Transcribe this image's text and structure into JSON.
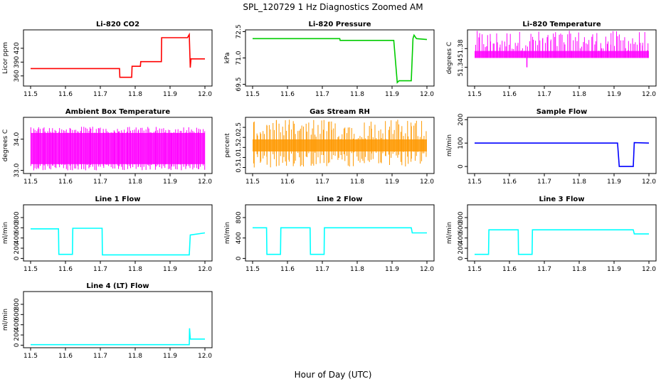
{
  "figure": {
    "title": "SPL_120729  1 Hz Diagnostics Zoomed AM",
    "xlabel": "Hour of Day (UTC)"
  },
  "chart_data": [
    {
      "type": "line",
      "title": "Li-820 CO2",
      "ylabel": "Licor ppm",
      "color": "#ff0000",
      "xlim": [
        11.5,
        12.0
      ],
      "ylim": [
        338,
        460
      ],
      "x_ticks": [
        "11.5",
        "11.6",
        "11.7",
        "11.8",
        "11.9",
        "12.0"
      ],
      "y_ticks": [
        {
          "value": 360,
          "label": "360"
        },
        {
          "value": 390,
          "label": "390"
        },
        {
          "value": 420,
          "label": "420"
        }
      ],
      "series": [
        {
          "x": [
            11.5,
            11.755,
            11.756,
            11.79,
            11.791,
            11.815,
            11.816,
            11.875,
            11.876,
            11.95,
            11.955,
            11.958,
            11.96,
            11.97,
            12.0
          ],
          "y": [
            376,
            376,
            357,
            357,
            381,
            381,
            391,
            391,
            443,
            443,
            450,
            378,
            397,
            397,
            397
          ]
        }
      ]
    },
    {
      "type": "line",
      "title": "Li-820 Pressure",
      "ylabel": "kPa",
      "color": "#00cc00",
      "xlim": [
        11.5,
        12.0
      ],
      "ylim": [
        69.4,
        72.6
      ],
      "x_ticks": [
        "11.5",
        "11.6",
        "11.7",
        "11.8",
        "11.9",
        "12.0"
      ],
      "y_ticks": [
        {
          "value": 69.5,
          "label": "69.5"
        },
        {
          "value": 71.0,
          "label": "71.0"
        },
        {
          "value": 72.5,
          "label": "72.5"
        }
      ],
      "series": [
        {
          "x": [
            11.5,
            11.75,
            11.751,
            11.905,
            11.915,
            11.92,
            11.955,
            11.96,
            11.963,
            11.97,
            12.0
          ],
          "y": [
            72.1,
            72.1,
            72.0,
            72.0,
            69.6,
            69.7,
            69.7,
            72.1,
            72.3,
            72.1,
            72.05
          ]
        }
      ]
    },
    {
      "type": "band",
      "title": "Li-820 Temperature",
      "ylabel": "degrees C",
      "color": "#ff00ff",
      "xlim": [
        11.5,
        12.0
      ],
      "ylim": [
        51.3,
        51.42
      ],
      "x_ticks": [
        "11.5",
        "11.6",
        "11.7",
        "11.8",
        "11.9",
        "12.0"
      ],
      "y_ticks": [
        {
          "value": 51.34,
          "label": "51.34"
        },
        {
          "value": 51.38,
          "label": "51.38"
        }
      ],
      "band": {
        "low": 51.36,
        "high": 51.375,
        "spike_max": 51.418,
        "outlier": {
          "x": 11.65,
          "y": 51.34
        }
      }
    },
    {
      "type": "band",
      "title": "Ambient Box Temperature",
      "ylabel": "degrees C",
      "color": "#ff00ff",
      "xlim": [
        11.5,
        12.0
      ],
      "ylim": [
        32.9,
        34.7
      ],
      "x_ticks": [
        "11.5",
        "11.6",
        "11.7",
        "11.8",
        "11.9",
        "12.0"
      ],
      "y_ticks": [
        {
          "value": 33.0,
          "label": "33.0"
        },
        {
          "value": 34.0,
          "label": "34.0"
        }
      ],
      "band": {
        "low": 33.2,
        "high": 34.2,
        "spike_max": 34.4,
        "spike_min": 32.95
      }
    },
    {
      "type": "band",
      "title": "Gas Stream RH",
      "ylabel": "percent",
      "color": "#ff9900",
      "xlim": [
        11.5,
        12.0
      ],
      "ylim": [
        0.2,
        3.0
      ],
      "x_ticks": [
        "11.5",
        "11.6",
        "11.7",
        "11.8",
        "11.9",
        "12.0"
      ],
      "y_ticks": [
        {
          "value": 0.5,
          "label": "0.5"
        },
        {
          "value": 1.0,
          "label": "1.0"
        },
        {
          "value": 1.5,
          "label": "1.5"
        },
        {
          "value": 2.0,
          "label": "2.0"
        },
        {
          "value": 2.5,
          "label": "2.5"
        }
      ],
      "band": {
        "low": 1.3,
        "high": 1.9,
        "spike_max": 2.9,
        "spike_min": 0.3
      }
    },
    {
      "type": "line",
      "title": "Sample Flow",
      "ylabel": "ml/min",
      "color": "#0000ff",
      "xlim": [
        11.5,
        12.0
      ],
      "ylim": [
        -30,
        210
      ],
      "x_ticks": [
        "11.5",
        "11.6",
        "11.7",
        "11.8",
        "11.9",
        "12.0"
      ],
      "y_ticks": [
        {
          "value": 0,
          "label": "0"
        },
        {
          "value": 100,
          "label": "100"
        },
        {
          "value": 200,
          "label": "200"
        }
      ],
      "series": [
        {
          "x": [
            11.5,
            11.91,
            11.915,
            11.955,
            11.958,
            12.0
          ],
          "y": [
            100,
            100,
            0,
            0,
            102,
            100
          ]
        }
      ]
    },
    {
      "type": "line",
      "title": "Line 1 Flow",
      "ylabel": "ml/min",
      "color": "#00ffff",
      "xlim": [
        11.5,
        12.0
      ],
      "ylim": [
        -50,
        1050
      ],
      "x_ticks": [
        "11.5",
        "11.6",
        "11.7",
        "11.8",
        "11.9",
        "12.0"
      ],
      "y_ticks": [
        {
          "value": 0,
          "label": "0"
        },
        {
          "value": 200,
          "label": "200"
        },
        {
          "value": 400,
          "label": "400"
        },
        {
          "value": 600,
          "label": "600"
        },
        {
          "value": 800,
          "label": "800"
        }
      ],
      "series": [
        {
          "x": [
            11.5,
            11.58,
            11.581,
            11.62,
            11.621,
            11.705,
            11.706,
            11.955,
            11.958,
            12.0
          ],
          "y": [
            580,
            580,
            80,
            80,
            590,
            590,
            70,
            70,
            460,
            500
          ]
        }
      ]
    },
    {
      "type": "line",
      "title": "Line 2 Flow",
      "ylabel": "ml/min",
      "color": "#00ffff",
      "xlim": [
        11.5,
        12.0
      ],
      "ylim": [
        -50,
        1050
      ],
      "x_ticks": [
        "11.5",
        "11.6",
        "11.7",
        "11.8",
        "11.9",
        "12.0"
      ],
      "y_ticks": [
        {
          "value": 0,
          "label": "0"
        },
        {
          "value": 400,
          "label": "400"
        },
        {
          "value": 800,
          "label": "800"
        }
      ],
      "series": [
        {
          "x": [
            11.5,
            11.54,
            11.541,
            11.58,
            11.581,
            11.665,
            11.666,
            11.705,
            11.706,
            11.955,
            11.958,
            12.0
          ],
          "y": [
            600,
            600,
            80,
            80,
            600,
            600,
            80,
            80,
            600,
            600,
            500,
            500
          ]
        }
      ]
    },
    {
      "type": "line",
      "title": "Line 3 Flow",
      "ylabel": "ml/min",
      "color": "#00ffff",
      "xlim": [
        11.5,
        12.0
      ],
      "ylim": [
        -50,
        1050
      ],
      "x_ticks": [
        "11.5",
        "11.6",
        "11.7",
        "11.8",
        "11.9",
        "12.0"
      ],
      "y_ticks": [
        {
          "value": 0,
          "label": "0"
        },
        {
          "value": 200,
          "label": "200"
        },
        {
          "value": 400,
          "label": "400"
        },
        {
          "value": 600,
          "label": "600"
        },
        {
          "value": 800,
          "label": "800"
        }
      ],
      "series": [
        {
          "x": [
            11.5,
            11.54,
            11.541,
            11.625,
            11.626,
            11.665,
            11.666,
            11.955,
            11.958,
            12.0
          ],
          "y": [
            80,
            80,
            560,
            560,
            80,
            80,
            560,
            560,
            480,
            480
          ]
        }
      ]
    },
    {
      "type": "line",
      "title": "Line 4 (LT) Flow",
      "ylabel": "ml/min",
      "color": "#00ffff",
      "xlim": [
        11.5,
        12.0
      ],
      "ylim": [
        -50,
        1050
      ],
      "x_ticks": [
        "11.5",
        "11.6",
        "11.7",
        "11.8",
        "11.9",
        "12.0"
      ],
      "y_ticks": [
        {
          "value": 0,
          "label": "0"
        },
        {
          "value": 200,
          "label": "200"
        },
        {
          "value": 400,
          "label": "400"
        },
        {
          "value": 600,
          "label": "600"
        },
        {
          "value": 800,
          "label": "800"
        }
      ],
      "series": [
        {
          "x": [
            11.5,
            11.955,
            11.956,
            11.958,
            11.96,
            12.0
          ],
          "y": [
            10,
            10,
            330,
            120,
            120,
            120
          ]
        }
      ]
    }
  ]
}
